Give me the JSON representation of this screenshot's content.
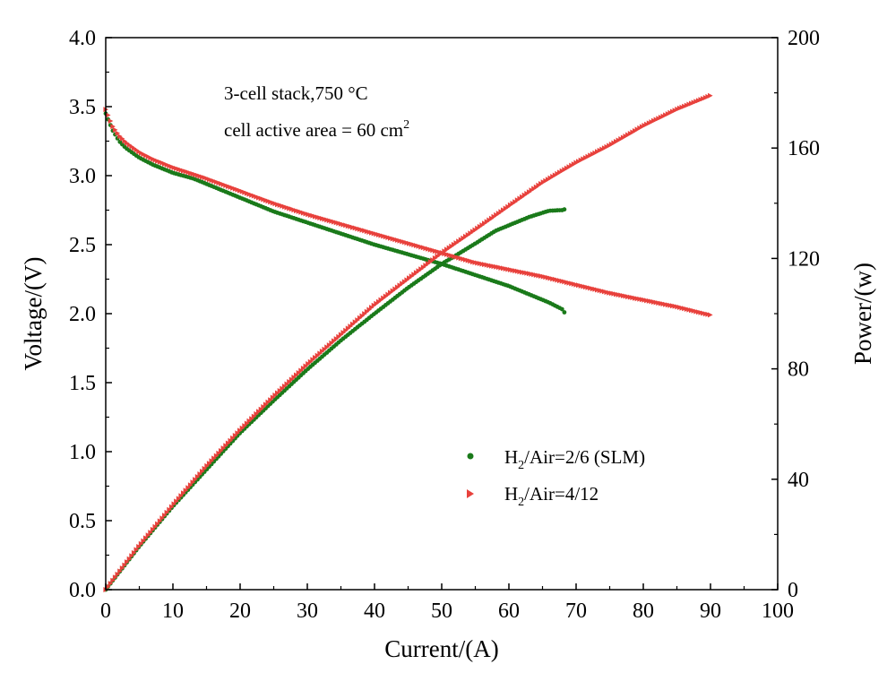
{
  "chart_data": {
    "type": "scatter",
    "x_axis": {
      "label": "Current/(A)",
      "range": [
        0,
        100
      ],
      "ticks": [
        0,
        10,
        20,
        30,
        40,
        50,
        60,
        70,
        80,
        90,
        100
      ],
      "tick_labels": [
        "0",
        "10",
        "20",
        "30",
        "40",
        "50",
        "60",
        "70",
        "80",
        "90",
        "100"
      ]
    },
    "y_left_axis": {
      "label": "Voltage/(V)",
      "range": [
        0,
        4
      ],
      "ticks": [
        0,
        0.5,
        1,
        1.5,
        2,
        2.5,
        3,
        3.5,
        4
      ],
      "tick_labels": [
        "0.0",
        "0.5",
        "1.0",
        "1.5",
        "2.0",
        "2.5",
        "3.0",
        "3.5",
        "4.0"
      ]
    },
    "y_right_axis": {
      "label": "Power/(w)",
      "range": [
        0,
        200
      ],
      "ticks": [
        0,
        40,
        80,
        120,
        160,
        200
      ],
      "tick_labels": [
        "0",
        "40",
        "80",
        "120",
        "160",
        "200"
      ]
    },
    "annotation": {
      "line1": "3-cell stack,750 °C",
      "line2": "cell active area = 60 cm",
      "line2_sup": "2"
    },
    "grid": false,
    "legend_position": "bottom-right",
    "series": [
      {
        "name": "H2/Air=2/6 (SLM)",
        "legend_main": "H",
        "legend_sub": "2",
        "legend_rest": "/Air=2/6 (SLM)",
        "color": "#1a7a1a",
        "marker": "circle",
        "voltage_points": [
          [
            0,
            3.45
          ],
          [
            1,
            3.33
          ],
          [
            2,
            3.25
          ],
          [
            3,
            3.2
          ],
          [
            5,
            3.13
          ],
          [
            7,
            3.08
          ],
          [
            10,
            3.02
          ],
          [
            13,
            2.98
          ],
          [
            16,
            2.92
          ],
          [
            20,
            2.84
          ],
          [
            25,
            2.74
          ],
          [
            30,
            2.66
          ],
          [
            35,
            2.58
          ],
          [
            40,
            2.5
          ],
          [
            45,
            2.43
          ],
          [
            50,
            2.36
          ],
          [
            55,
            2.28
          ],
          [
            60,
            2.2
          ],
          [
            63,
            2.14
          ],
          [
            66,
            2.08
          ],
          [
            68,
            2.03
          ],
          [
            68.5,
            1.99
          ]
        ],
        "power_points": [
          [
            0,
            0
          ],
          [
            5,
            15.7
          ],
          [
            10,
            30.2
          ],
          [
            15,
            43.5
          ],
          [
            20,
            56.8
          ],
          [
            25,
            68.5
          ],
          [
            30,
            79.8
          ],
          [
            35,
            90.3
          ],
          [
            40,
            100
          ],
          [
            45,
            109.4
          ],
          [
            50,
            118
          ],
          [
            55,
            125.4
          ],
          [
            58,
            130
          ],
          [
            60,
            132
          ],
          [
            63,
            135
          ],
          [
            66,
            137.3
          ],
          [
            68,
            137.5
          ],
          [
            68.5,
            138
          ]
        ]
      },
      {
        "name": "H2/Air=4/12",
        "legend_main": "H",
        "legend_sub": "2",
        "legend_rest": "/Air=4/12",
        "color": "#e8413c",
        "marker": "triangle-right",
        "voltage_points": [
          [
            0,
            3.48
          ],
          [
            1,
            3.36
          ],
          [
            2,
            3.29
          ],
          [
            3,
            3.24
          ],
          [
            5,
            3.17
          ],
          [
            7,
            3.12
          ],
          [
            10,
            3.06
          ],
          [
            15,
            2.98
          ],
          [
            20,
            2.89
          ],
          [
            25,
            2.8
          ],
          [
            30,
            2.72
          ],
          [
            35,
            2.65
          ],
          [
            40,
            2.58
          ],
          [
            45,
            2.51
          ],
          [
            50,
            2.44
          ],
          [
            55,
            2.37
          ],
          [
            60,
            2.32
          ],
          [
            65,
            2.27
          ],
          [
            70,
            2.21
          ],
          [
            75,
            2.15
          ],
          [
            80,
            2.1
          ],
          [
            85,
            2.05
          ],
          [
            90,
            1.99
          ]
        ],
        "power_points": [
          [
            0,
            0
          ],
          [
            5,
            15.9
          ],
          [
            10,
            30.6
          ],
          [
            15,
            44.7
          ],
          [
            20,
            57.8
          ],
          [
            25,
            70
          ],
          [
            30,
            81.6
          ],
          [
            40,
            103.2
          ],
          [
            50,
            122
          ],
          [
            55,
            130.4
          ],
          [
            60,
            139
          ],
          [
            65,
            147.5
          ],
          [
            70,
            154.7
          ],
          [
            75,
            161
          ],
          [
            80,
            168
          ],
          [
            85,
            174
          ],
          [
            90,
            179
          ]
        ]
      }
    ]
  }
}
